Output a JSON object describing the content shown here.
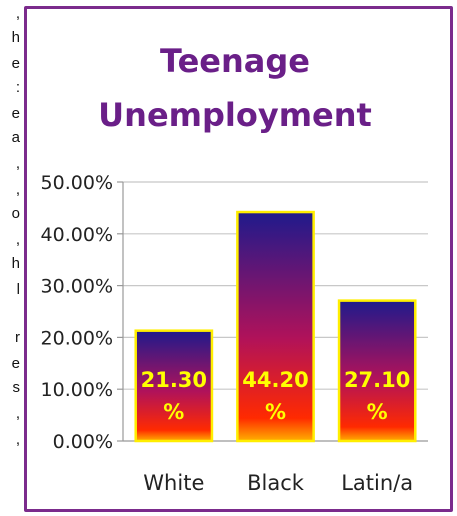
{
  "left_text": {
    "glyphs": [
      ",",
      "h",
      "e",
      ":",
      "e",
      "a",
      ",",
      ",",
      "o",
      ",",
      "h",
      "l",
      "r",
      "e",
      "s",
      ",",
      ","
    ]
  },
  "chart_data": {
    "type": "bar",
    "title_line1": "Teenage",
    "title_line2": "Unemployment",
    "categories": [
      "White",
      "Black",
      "Latin/a"
    ],
    "values": [
      21.3,
      44.2,
      27.1
    ],
    "data_labels": [
      {
        "line1": "21.30",
        "line2": "%"
      },
      {
        "line1": "44.20",
        "line2": "%"
      },
      {
        "line1": "27.10",
        "line2": "%"
      }
    ],
    "y_ticks": [
      "0.00%",
      "10.00%",
      "20.00%",
      "30.00%",
      "40.00%",
      "50.00%"
    ],
    "ylim": [
      0,
      50
    ],
    "grid": true,
    "colors": {
      "bar_top": "#1f1a8c",
      "bar_mid": "#b0125a",
      "bar_bottom": "#ff2a00",
      "bar_base": "#ffb000",
      "bar_border": "#ffee00",
      "title": "#6a1f88",
      "frame": "#7b2b8c",
      "label": "#ffff00"
    }
  }
}
